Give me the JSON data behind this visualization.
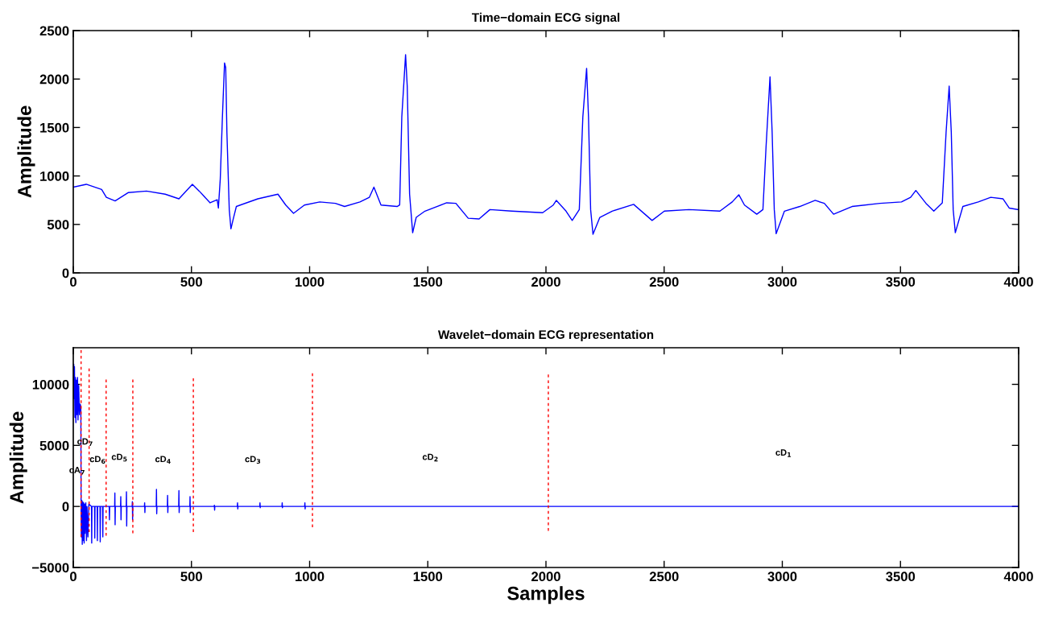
{
  "chart_data": [
    {
      "type": "line",
      "title": "Time−domain ECG signal",
      "ylabel": "Amplitude",
      "xlim": [
        0,
        4000
      ],
      "ylim": [
        0,
        2500
      ],
      "xticks": [
        0,
        500,
        1000,
        1500,
        2000,
        2500,
        3000,
        3500,
        4000
      ],
      "yticks": [
        0,
        500,
        1000,
        1500,
        2000,
        2500
      ],
      "series": [
        {
          "color": "#0000ff",
          "x": [
            0,
            55,
            120,
            140,
            177,
            232,
            310,
            389,
            447,
            504,
            533,
            579,
            609,
            614,
            622,
            631,
            640,
            645,
            650,
            660,
            667,
            677,
            690,
            781,
            866,
            899,
            932,
            978,
            1043,
            1109,
            1148,
            1213,
            1253,
            1272,
            1302,
            1370,
            1381,
            1390,
            1406,
            1413,
            1423,
            1436,
            1451,
            1488,
            1580,
            1619,
            1671,
            1717,
            1763,
            1855,
            1986,
            2031,
            2044,
            2085,
            2111,
            2141,
            2156,
            2172,
            2180,
            2189,
            2199,
            2228,
            2280,
            2371,
            2449,
            2501,
            2605,
            2736,
            2788,
            2816,
            2840,
            2892,
            2918,
            2931,
            2948,
            2957,
            2966,
            2974,
            3009,
            3074,
            3139,
            3178,
            3217,
            3295,
            3413,
            3504,
            3543,
            3565,
            3608,
            3641,
            3677,
            3693,
            3706,
            3715,
            3723,
            3732,
            3764,
            3829,
            3882,
            3934,
            3960,
            3999
          ],
          "values": [
            885,
            914,
            860,
            780,
            742,
            828,
            844,
            812,
            764,
            914,
            844,
            723,
            755,
            669,
            971,
            1608,
            2166,
            2118,
            1449,
            653,
            455,
            557,
            685,
            764,
            812,
            700,
            615,
            700,
            732,
            717,
            685,
            732,
            780,
            885,
            700,
            685,
            700,
            1608,
            2252,
            1927,
            812,
            414,
            573,
            637,
            723,
            717,
            564,
            557,
            653,
            637,
            621,
            700,
            748,
            637,
            541,
            653,
            1608,
            2111,
            1608,
            653,
            398,
            573,
            637,
            707,
            541,
            637,
            653,
            637,
            732,
            806,
            700,
            605,
            653,
            1290,
            2022,
            1449,
            653,
            404,
            637,
            685,
            748,
            717,
            605,
            685,
            717,
            732,
            780,
            850,
            717,
            637,
            723,
            1449,
            1927,
            1449,
            653,
            414,
            685,
            732,
            780,
            764,
            669,
            653
          ]
        }
      ]
    },
    {
      "type": "line",
      "title": "Wavelet−domain ECG representation",
      "xlabel": "Samples",
      "ylabel": "Amplitude",
      "xlim": [
        0,
        4000
      ],
      "ylim": [
        -5000,
        13000
      ],
      "xticks": [
        0,
        500,
        1000,
        1500,
        2000,
        2500,
        3000,
        3500,
        4000
      ],
      "yticks": [
        {
          "value": -5000,
          "label": "−5000"
        },
        0,
        5000,
        10000
      ],
      "series": [
        {
          "color": "#0000ff",
          "x": [
            0,
            2,
            3,
            5,
            7,
            9,
            11,
            13,
            15,
            18,
            20,
            23,
            26,
            29,
            32,
            33,
            34,
            36,
            38,
            40,
            42,
            44,
            46,
            48,
            50,
            53,
            56,
            58,
            62,
            66,
            77,
            78,
            79,
            90,
            91,
            92,
            101,
            102,
            103,
            113,
            114,
            115,
            124,
            125,
            126,
            152,
            153,
            154,
            175,
            176,
            177,
            178,
            200,
            201,
            202,
            203,
            224,
            225,
            226,
            227,
            249,
            250,
            251,
            252,
            301,
            302,
            303,
            304,
            351,
            352,
            353,
            354,
            398,
            399,
            400,
            401,
            446,
            447,
            448,
            449,
            493,
            494,
            495,
            496,
            596,
            597,
            598,
            599,
            694,
            695,
            696,
            697,
            789,
            790,
            791,
            792,
            883,
            884,
            885,
            886,
            979,
            980,
            981,
            982,
            1500,
            2500,
            3999
          ],
          "values": [
            10140,
            11660,
            8830,
            11450,
            7300,
            10570,
            6870,
            10350,
            7520,
            10570,
            7080,
            9920,
            7520,
            8390,
            8180,
            0,
            -2500,
            500,
            -3100,
            400,
            -2800,
            300,
            -3000,
            200,
            -2200,
            300,
            -2800,
            0,
            -2500,
            200,
            0,
            -3000,
            0,
            0,
            -2600,
            0,
            0,
            -2800,
            0,
            0,
            -2900,
            0,
            0,
            -2500,
            0,
            0,
            -1100,
            0,
            0,
            1100,
            -1500,
            0,
            0,
            800,
            -1100,
            0,
            0,
            1200,
            -1600,
            0,
            0,
            400,
            -1100,
            0,
            0,
            300,
            -500,
            0,
            0,
            1400,
            -600,
            0,
            0,
            900,
            -500,
            0,
            0,
            1300,
            -500,
            0,
            0,
            800,
            -500,
            0,
            0,
            100,
            -300,
            0,
            0,
            300,
            -200,
            0,
            0,
            300,
            -100,
            0,
            0,
            300,
            -100,
            0,
            0,
            300,
            -200,
            0,
            0,
            0,
            0
          ]
        },
        {
          "type": "line",
          "color": "#ff0000",
          "line_style": "dashed",
          "x": [
            33,
            33
          ],
          "values": [
            -2500,
            12800
          ]
        },
        {
          "type": "line",
          "color": "#ff0000",
          "line_style": "dashed",
          "x": [
            67,
            67
          ],
          "values": [
            -2100,
            11300
          ]
        },
        {
          "type": "line",
          "color": "#ff0000",
          "line_style": "dashed",
          "x": [
            139,
            139
          ],
          "values": [
            -2400,
            10400
          ]
        },
        {
          "type": "line",
          "color": "#ff0000",
          "line_style": "dashed",
          "x": [
            252,
            252
          ],
          "values": [
            -2200,
            10400
          ]
        },
        {
          "type": "line",
          "color": "#ff0000",
          "line_style": "dashed",
          "x": [
            508,
            508
          ],
          "values": [
            -2100,
            10500
          ]
        },
        {
          "type": "line",
          "color": "#ff0000",
          "line_style": "dashed",
          "x": [
            1012,
            1012
          ],
          "values": [
            -1700,
            10900
          ]
        },
        {
          "type": "line",
          "color": "#ff0000",
          "line_style": "dashed",
          "x": [
            2010,
            2010
          ],
          "values": [
            -2000,
            10800
          ]
        }
      ],
      "annotations": [
        "cA$_{7}$",
        "cD$_{7}$",
        "cD$_{6}$",
        "cD$_{5}$",
        "cD$_{4}$",
        "cD$_{3}$",
        "cD$_{2}$",
        "cD$_{1}$"
      ]
    }
  ]
}
